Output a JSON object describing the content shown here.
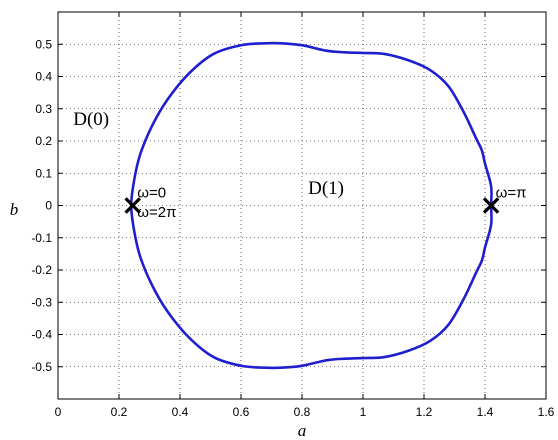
{
  "chart_data": {
    "type": "line",
    "xlabel": "a",
    "ylabel": "b",
    "xlim": [
      0,
      1.6
    ],
    "ylim": [
      -0.6,
      0.6
    ],
    "x_ticks": [
      0,
      0.2,
      0.4,
      0.6,
      0.8,
      1,
      1.2,
      1.4,
      1.6
    ],
    "x_tick_labels": [
      "0",
      "0.2",
      "0.4",
      "0.6",
      "0.8",
      "1",
      "1.2",
      "1.4",
      "1.6"
    ],
    "y_ticks": [
      0.5,
      0.4,
      0.3,
      0.2,
      0.1,
      0,
      -0.1,
      -0.2,
      -0.3,
      -0.4,
      -0.5
    ],
    "y_tick_labels": [
      "0.5",
      "0.4",
      "0.3",
      "0.2",
      "0.1",
      "0",
      "-0.1",
      "-0.2",
      "-0.3",
      "-0.4",
      "-0.5"
    ],
    "grid": true,
    "series_color": "#1f1fcf",
    "series": [
      {
        "x": [
          0.24,
          0.25,
          0.27,
          0.31,
          0.36,
          0.43,
          0.51,
          0.6,
          0.68,
          0.73,
          0.8,
          0.88,
          0.94,
          1.0,
          1.07,
          1.15,
          1.22,
          1.28,
          1.33,
          1.37,
          1.39,
          1.4,
          1.42,
          1.42,
          1.42,
          1.4,
          1.39,
          1.37,
          1.33,
          1.28,
          1.22,
          1.15,
          1.07,
          1.0,
          0.94,
          0.88,
          0.8,
          0.73,
          0.68,
          0.6,
          0.51,
          0.43,
          0.36,
          0.31,
          0.27,
          0.25,
          0.24
        ],
        "y": [
          0.0,
          0.08,
          0.16,
          0.25,
          0.33,
          0.41,
          0.47,
          0.497,
          0.503,
          0.503,
          0.497,
          0.48,
          0.475,
          0.473,
          0.47,
          0.45,
          0.42,
          0.37,
          0.29,
          0.21,
          0.17,
          0.13,
          0.06,
          0.0,
          -0.06,
          -0.13,
          -0.17,
          -0.21,
          -0.29,
          -0.37,
          -0.42,
          -0.45,
          -0.47,
          -0.473,
          -0.475,
          -0.48,
          -0.497,
          -0.503,
          -0.503,
          -0.497,
          -0.47,
          -0.41,
          -0.33,
          -0.25,
          -0.16,
          -0.08,
          0.0
        ]
      }
    ],
    "markers": [
      {
        "x": 0.245,
        "y": 0,
        "symbol": "x"
      },
      {
        "x": 1.42,
        "y": 0,
        "symbol": "x"
      }
    ],
    "annotations": [
      {
        "text": "ω=0",
        "x": 0.26,
        "y": 0.025
      },
      {
        "text": "ω=2π",
        "x": 0.26,
        "y": -0.035
      },
      {
        "text": "ω=π",
        "x": 1.435,
        "y": 0.025
      },
      {
        "text": "D(0)",
        "x": 0.05,
        "y": 0.25
      },
      {
        "text": "D(1)",
        "x": 0.82,
        "y": 0.035
      }
    ]
  }
}
